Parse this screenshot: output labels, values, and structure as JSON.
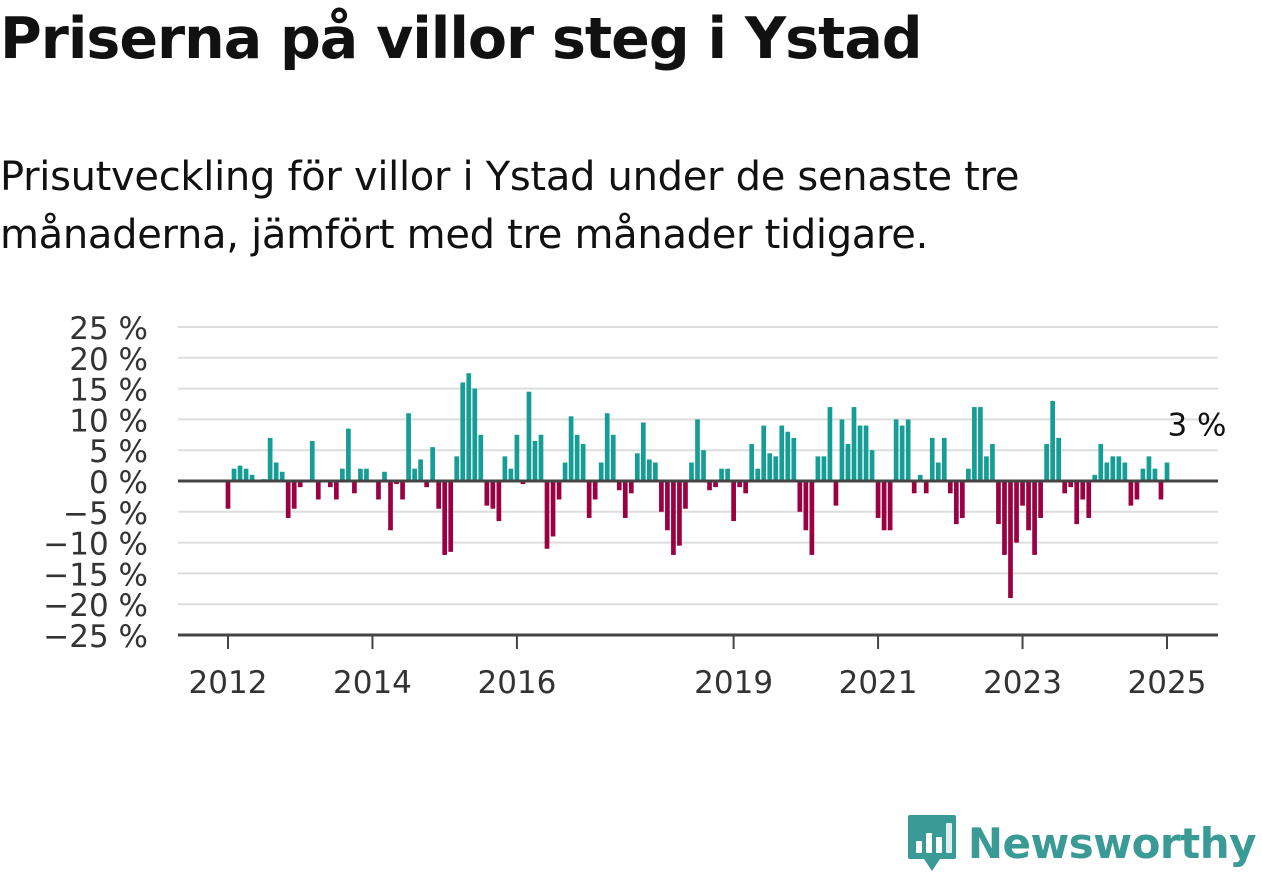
{
  "title": "Priserna på villor steg i Ystad",
  "subtitle": "Prisutveckling för villor i Ystad under de senaste tre månaderna, jämfört med tre månader tidigare.",
  "brand": {
    "name": "Newsworthy",
    "icon": "newsworthy-logo-icon",
    "color": "#3a9a95"
  },
  "colors": {
    "positive": "#169e96",
    "negative": "#9b0040",
    "grid": "#dddddd",
    "axis": "#444444"
  },
  "chart_data": {
    "type": "bar",
    "title": "Priserna på villor steg i Ystad",
    "subtitle": "Prisutveckling för villor i Ystad under de senaste tre månaderna, jämfört med tre månader tidigare.",
    "ylim": [
      -25,
      25
    ],
    "yticks": [
      25,
      20,
      15,
      10,
      5,
      0,
      -5,
      -10,
      -15,
      -20,
      -25
    ],
    "ytick_labels": [
      "25 %",
      "20 %",
      "15 %",
      "10 %",
      "5 %",
      "0 %",
      "−5 %",
      "−10 %",
      "−15 %",
      "−20 %",
      "−25 %"
    ],
    "xticks": [
      "2012-01",
      "2014-01",
      "2016-01",
      "2019-01",
      "2021-01",
      "2023-01",
      "2025-01"
    ],
    "xtick_labels": [
      "2012",
      "2014",
      "2016",
      "2019",
      "2021",
      "2023",
      "2025"
    ],
    "grid": true,
    "last_value_label": "3 %",
    "x_start": "2012-01",
    "x_end": "2025-01",
    "values": [
      -4.5,
      2,
      2.5,
      2,
      1,
      0,
      0.3,
      7,
      3,
      1.5,
      -6,
      -4.5,
      -1,
      0,
      6.5,
      -3,
      0,
      -1,
      -3,
      2,
      8.5,
      -2,
      2,
      2,
      0,
      -3,
      1.5,
      -8,
      -0.5,
      -3,
      11,
      2,
      3.5,
      -1,
      5.5,
      -4.5,
      -12,
      -11.5,
      4,
      16,
      17.5,
      15,
      7.5,
      -4,
      -4.5,
      -6.5,
      4,
      2,
      7.5,
      -0.5,
      14.5,
      6.5,
      7.5,
      -11,
      -9,
      -3,
      3,
      10.5,
      7.5,
      6,
      -6,
      -3,
      3,
      11,
      7.5,
      -1.5,
      -6,
      -2,
      4.5,
      9.5,
      3.5,
      3,
      -5,
      -8,
      -12,
      -10.5,
      -4.5,
      3,
      10,
      5,
      -1.5,
      -1,
      2,
      2,
      -6.5,
      -1,
      -2,
      6,
      2,
      9,
      4.5,
      4,
      9,
      8,
      7,
      -5,
      -8,
      -12,
      4,
      4,
      12,
      -4,
      10,
      6,
      12,
      9,
      9,
      5,
      -6,
      -8,
      -8,
      10,
      9,
      10,
      -2,
      1,
      -2,
      7,
      3,
      7,
      -2,
      -7,
      -6,
      2,
      12,
      12,
      4,
      6,
      -7,
      -12,
      -19,
      -10,
      -4,
      -8,
      -12,
      -6,
      6,
      13,
      7,
      -2,
      -1,
      -7,
      -3,
      -6,
      1,
      6,
      3,
      4,
      4,
      3,
      -4,
      -3,
      2,
      4,
      2,
      -3,
      3
    ]
  }
}
